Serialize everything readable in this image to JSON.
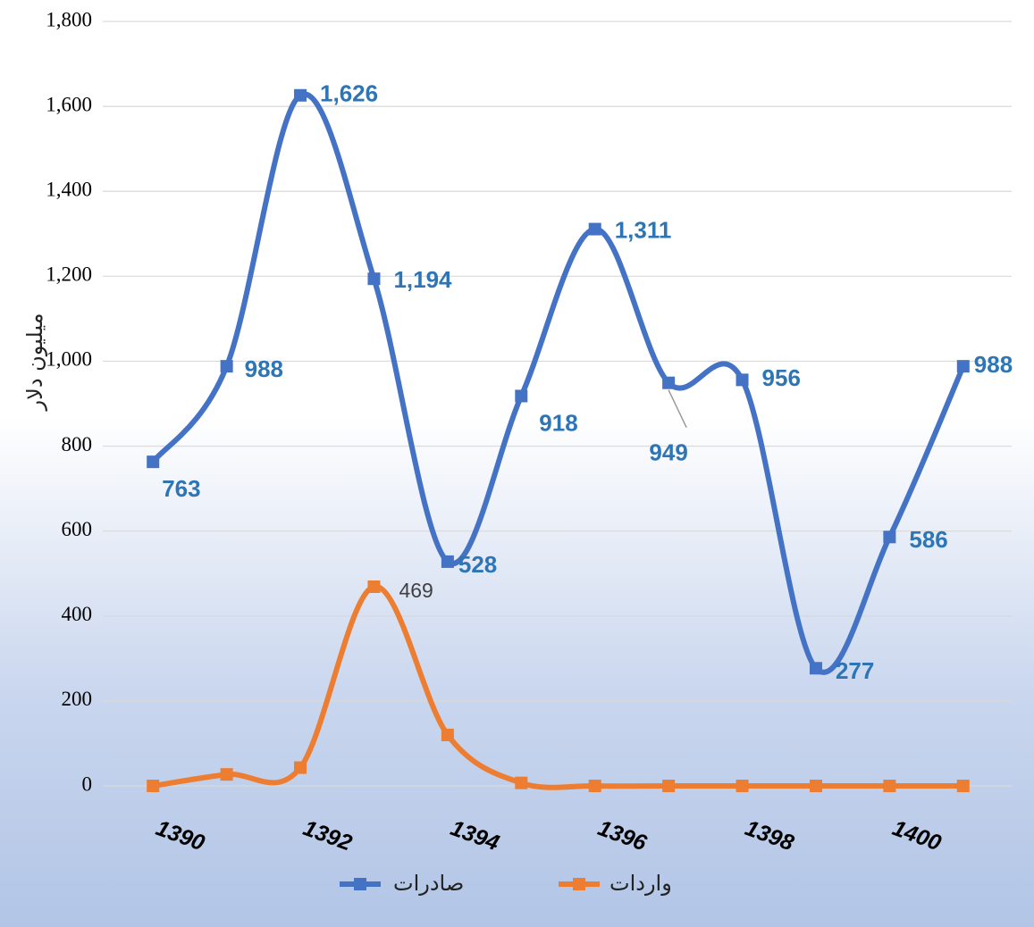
{
  "chart_data": {
    "type": "line",
    "y_label": "میلیون دلار",
    "categories": [
      "1390",
      null,
      "1392",
      null,
      "1394",
      null,
      "1396",
      null,
      "1398",
      null,
      "1400",
      null
    ],
    "series": [
      {
        "name": "صادرات",
        "color": "#4472c4",
        "label_color": "#2e75b6",
        "values": [
          763,
          988,
          1626,
          1194,
          528,
          918,
          1311,
          949,
          956,
          277,
          586,
          988
        ],
        "value_labels": [
          "763",
          "988",
          "1,626",
          "1,194",
          "528",
          "918",
          "1,311",
          "949",
          "956",
          "277",
          "586",
          "988"
        ]
      },
      {
        "name": "واردات",
        "color": "#ed7d31",
        "label_color": "#404040",
        "values": [
          0,
          27,
          43,
          469,
          120,
          7,
          0,
          0,
          0,
          0,
          0,
          0
        ],
        "value_labels": [
          null,
          null,
          null,
          "469",
          null,
          null,
          null,
          null,
          null,
          null,
          null,
          null
        ]
      }
    ],
    "ylim": [
      0,
      1800
    ],
    "yticks": [
      0,
      200,
      400,
      600,
      800,
      {
        "value": 1000,
        "label": "1,000"
      },
      {
        "value": 1200,
        "label": "1,200"
      },
      {
        "value": 1400,
        "label": "1,400"
      },
      {
        "value": 1600,
        "label": "1,600"
      },
      {
        "value": 1800,
        "label": "1,800"
      }
    ],
    "grid": true
  }
}
